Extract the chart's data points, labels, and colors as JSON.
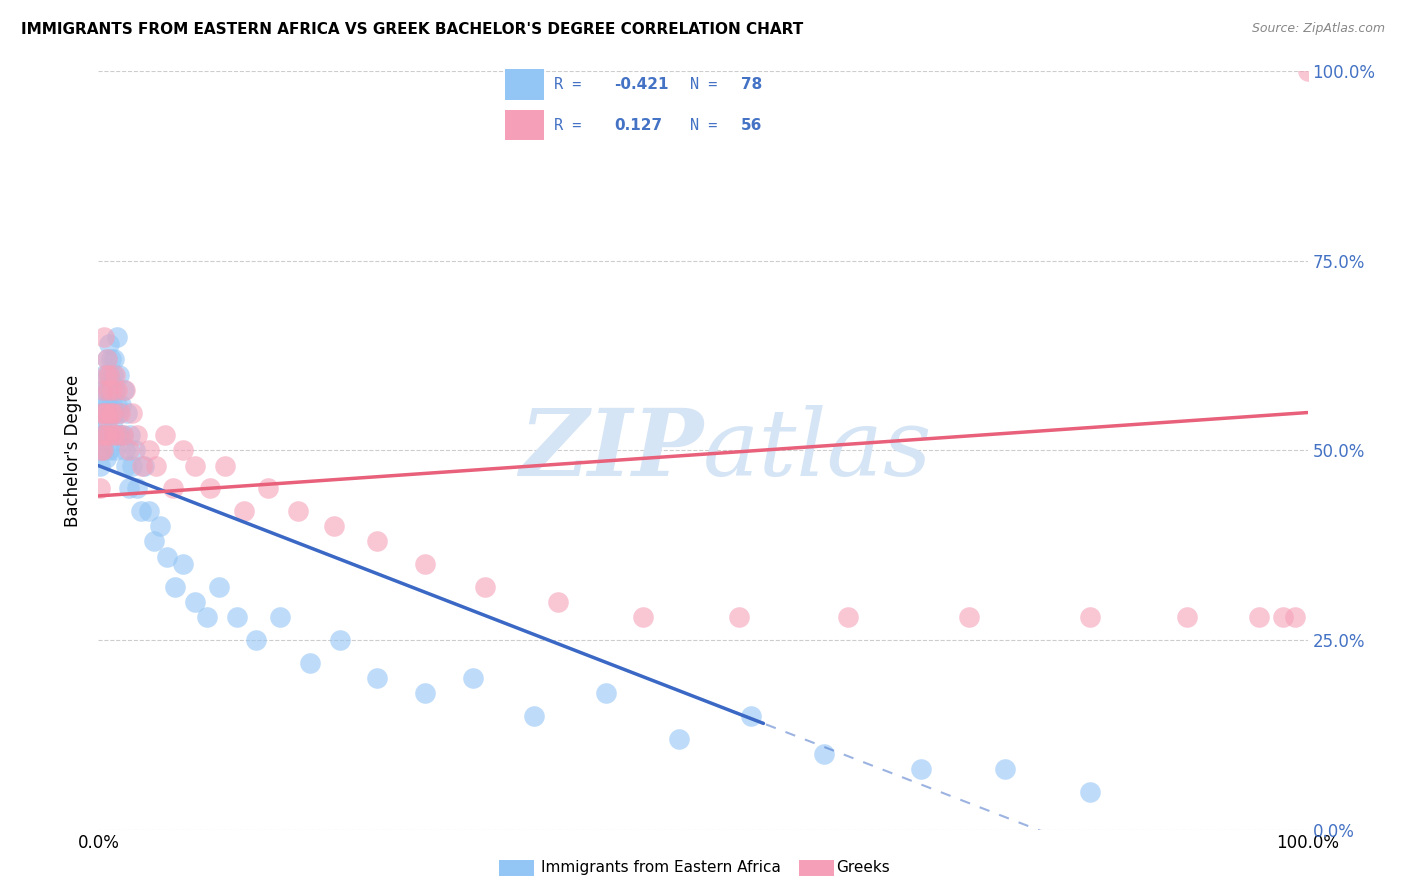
{
  "title": "IMMIGRANTS FROM EASTERN AFRICA VS GREEK BACHELOR'S DEGREE CORRELATION CHART",
  "source": "Source: ZipAtlas.com",
  "ylabel": "Bachelor's Degree",
  "yticks_labels": [
    "0.0%",
    "25.0%",
    "50.0%",
    "75.0%",
    "100.0%"
  ],
  "ytick_vals": [
    0.0,
    0.25,
    0.5,
    0.75,
    1.0
  ],
  "xtick_labels": [
    "0.0%",
    "100.0%"
  ],
  "xtick_vals": [
    0.0,
    1.0
  ],
  "legend_label1": "Immigrants from Eastern Africa",
  "legend_label2": "Greeks",
  "R1": -0.421,
  "N1": 78,
  "R2": 0.127,
  "N2": 56,
  "color_blue": "#93c5f5",
  "color_pink": "#f5a0b8",
  "color_blue_line": "#3a68c4",
  "color_pink_line": "#e8607a",
  "color_blue_text": "#4472c4",
  "grid_color": "#c8c8c8",
  "watermark_color": "#d5e5f5",
  "background_color": "#ffffff",
  "blue_x": [
    0.001,
    0.002,
    0.002,
    0.003,
    0.003,
    0.004,
    0.004,
    0.004,
    0.005,
    0.005,
    0.005,
    0.006,
    0.006,
    0.006,
    0.007,
    0.007,
    0.007,
    0.008,
    0.008,
    0.008,
    0.009,
    0.009,
    0.009,
    0.01,
    0.01,
    0.01,
    0.011,
    0.011,
    0.012,
    0.012,
    0.013,
    0.013,
    0.014,
    0.014,
    0.015,
    0.015,
    0.016,
    0.016,
    0.017,
    0.018,
    0.019,
    0.02,
    0.021,
    0.022,
    0.023,
    0.024,
    0.025,
    0.026,
    0.028,
    0.03,
    0.032,
    0.035,
    0.038,
    0.042,
    0.046,
    0.051,
    0.057,
    0.063,
    0.07,
    0.08,
    0.09,
    0.1,
    0.115,
    0.13,
    0.15,
    0.175,
    0.2,
    0.23,
    0.27,
    0.31,
    0.36,
    0.42,
    0.48,
    0.54,
    0.6,
    0.68,
    0.75,
    0.82
  ],
  "blue_y": [
    0.48,
    0.5,
    0.52,
    0.56,
    0.55,
    0.54,
    0.52,
    0.58,
    0.5,
    0.55,
    0.6,
    0.52,
    0.56,
    0.49,
    0.58,
    0.62,
    0.54,
    0.6,
    0.56,
    0.52,
    0.58,
    0.64,
    0.5,
    0.62,
    0.55,
    0.59,
    0.56,
    0.58,
    0.54,
    0.6,
    0.55,
    0.62,
    0.58,
    0.5,
    0.56,
    0.65,
    0.55,
    0.52,
    0.6,
    0.52,
    0.56,
    0.52,
    0.58,
    0.5,
    0.48,
    0.55,
    0.45,
    0.52,
    0.48,
    0.5,
    0.45,
    0.42,
    0.48,
    0.42,
    0.38,
    0.4,
    0.36,
    0.32,
    0.35,
    0.3,
    0.28,
    0.32,
    0.28,
    0.25,
    0.28,
    0.22,
    0.25,
    0.2,
    0.18,
    0.2,
    0.15,
    0.18,
    0.12,
    0.15,
    0.1,
    0.08,
    0.08,
    0.05
  ],
  "pink_x": [
    0.001,
    0.002,
    0.003,
    0.003,
    0.004,
    0.004,
    0.005,
    0.005,
    0.006,
    0.006,
    0.007,
    0.007,
    0.008,
    0.008,
    0.009,
    0.009,
    0.01,
    0.011,
    0.012,
    0.013,
    0.014,
    0.015,
    0.016,
    0.018,
    0.02,
    0.022,
    0.025,
    0.028,
    0.032,
    0.036,
    0.042,
    0.048,
    0.055,
    0.062,
    0.07,
    0.08,
    0.092,
    0.105,
    0.12,
    0.14,
    0.165,
    0.195,
    0.23,
    0.27,
    0.32,
    0.38,
    0.45,
    0.53,
    0.62,
    0.72,
    0.82,
    0.9,
    0.96,
    0.98,
    0.99,
    1.0
  ],
  "pink_y": [
    0.45,
    0.5,
    0.52,
    0.55,
    0.5,
    0.58,
    0.55,
    0.65,
    0.52,
    0.6,
    0.55,
    0.62,
    0.58,
    0.54,
    0.6,
    0.52,
    0.55,
    0.58,
    0.55,
    0.52,
    0.6,
    0.58,
    0.52,
    0.55,
    0.52,
    0.58,
    0.5,
    0.55,
    0.52,
    0.48,
    0.5,
    0.48,
    0.52,
    0.45,
    0.5,
    0.48,
    0.45,
    0.48,
    0.42,
    0.45,
    0.42,
    0.4,
    0.38,
    0.35,
    0.32,
    0.3,
    0.28,
    0.28,
    0.28,
    0.28,
    0.28,
    0.28,
    0.28,
    0.28,
    0.28,
    1.0
  ],
  "blue_line_x_start": 0.0,
  "blue_line_x_end": 0.55,
  "blue_line_x_dash_start": 0.52,
  "blue_line_x_dash_end": 0.9,
  "blue_line_y_start": 0.48,
  "blue_line_y_end": 0.14,
  "pink_line_x_start": 0.0,
  "pink_line_x_end": 1.0,
  "pink_line_y_start": 0.44,
  "pink_line_y_end": 0.55
}
